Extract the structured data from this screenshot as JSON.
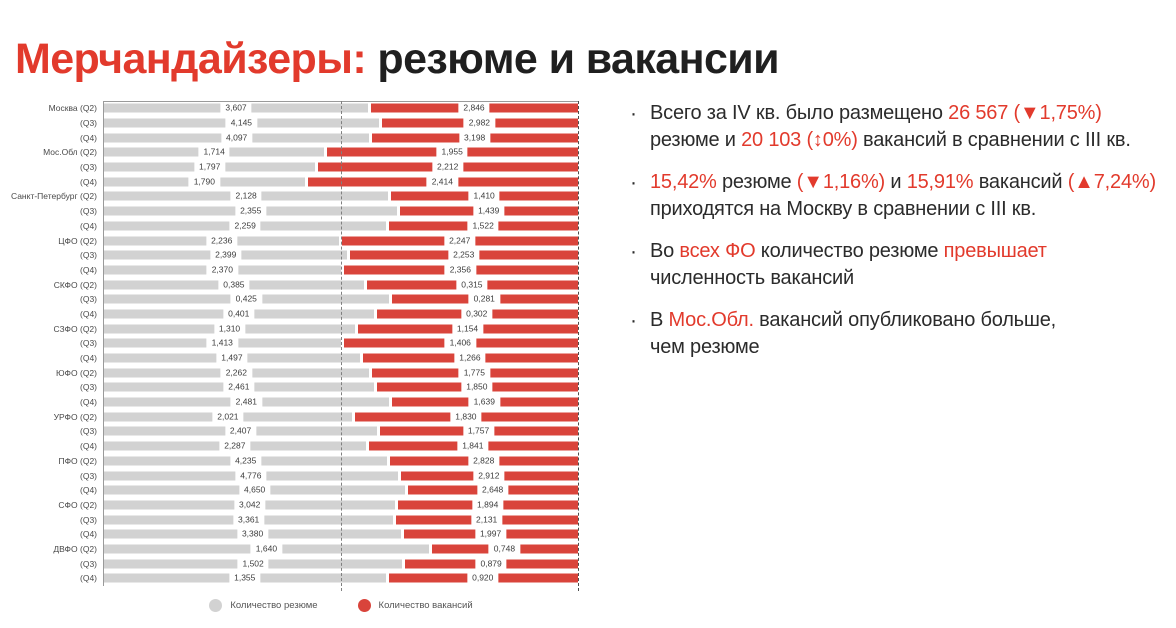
{
  "title": {
    "segments": [
      {
        "t": "Мерчандайзеры:",
        "c": "red"
      },
      {
        "t": " резюме и вакансии",
        "c": "dark"
      }
    ]
  },
  "colors": {
    "red_text": "#e23a2c",
    "bar_red": "#d9443b",
    "bar_gray": "#d2d2d2",
    "dark_text": "#1f1f1f"
  },
  "chart_data": {
    "type": "bar",
    "variant": "horizontal-100pct-stacked",
    "unit": "thousands (labels use comma as decimal separator)",
    "gridlines": {
      "mid_dashed_at": "50%",
      "right_dashed_at": "100%"
    },
    "legend": [
      {
        "label": "Количество резюме",
        "color": "#d2d2d2"
      },
      {
        "label": "Количество вакансий",
        "color": "#d9443b"
      }
    ],
    "rows": [
      {
        "axis_label": "Москва (Q2)",
        "group": "Москва",
        "quarter": "Q2",
        "resumes": 3607,
        "vacancies": 2846,
        "resumes_label": "3,607",
        "vacancies_label": "2,846"
      },
      {
        "axis_label": "(Q3)",
        "group": "Москва",
        "quarter": "Q3",
        "resumes": 4145,
        "vacancies": 2982,
        "resumes_label": "4,145",
        "vacancies_label": "2,982"
      },
      {
        "axis_label": "(Q4)",
        "group": "Москва",
        "quarter": "Q4",
        "resumes": 4097,
        "vacancies": 3198,
        "resumes_label": "4,097",
        "vacancies_label": "3,198"
      },
      {
        "axis_label": "Мос.Обл (Q2)",
        "group": "Мос.Обл",
        "quarter": "Q2",
        "resumes": 1714,
        "vacancies": 1955,
        "resumes_label": "1,714",
        "vacancies_label": "1,955"
      },
      {
        "axis_label": "(Q3)",
        "group": "Мос.Обл",
        "quarter": "Q3",
        "resumes": 1797,
        "vacancies": 2212,
        "resumes_label": "1,797",
        "vacancies_label": "2,212"
      },
      {
        "axis_label": "(Q4)",
        "group": "Мос.Обл",
        "quarter": "Q4",
        "resumes": 1790,
        "vacancies": 2414,
        "resumes_label": "1,790",
        "vacancies_label": "2,414"
      },
      {
        "axis_label": "Санкт-Петербург (Q2)",
        "group": "Санкт-Петербург",
        "quarter": "Q2",
        "resumes": 2128,
        "vacancies": 1410,
        "resumes_label": "2,128",
        "vacancies_label": "1,410"
      },
      {
        "axis_label": "(Q3)",
        "group": "Санкт-Петербург",
        "quarter": "Q3",
        "resumes": 2355,
        "vacancies": 1439,
        "resumes_label": "2,355",
        "vacancies_label": "1,439"
      },
      {
        "axis_label": "(Q4)",
        "group": "Санкт-Петербург",
        "quarter": "Q4",
        "resumes": 2259,
        "vacancies": 1522,
        "resumes_label": "2,259",
        "vacancies_label": "1,522"
      },
      {
        "axis_label": "ЦФО (Q2)",
        "group": "ЦФО",
        "quarter": "Q2",
        "resumes": 2236,
        "vacancies": 2247,
        "resumes_label": "2,236",
        "vacancies_label": "2,247"
      },
      {
        "axis_label": "(Q3)",
        "group": "ЦФО",
        "quarter": "Q3",
        "resumes": 2399,
        "vacancies": 2253,
        "resumes_label": "2,399",
        "vacancies_label": "2,253"
      },
      {
        "axis_label": "(Q4)",
        "group": "ЦФО",
        "quarter": "Q4",
        "resumes": 2370,
        "vacancies": 2356,
        "resumes_label": "2,370",
        "vacancies_label": "2,356"
      },
      {
        "axis_label": "СКФО (Q2)",
        "group": "СКФО",
        "quarter": "Q2",
        "resumes": 385,
        "vacancies": 315,
        "resumes_label": "0,385",
        "vacancies_label": "0,315"
      },
      {
        "axis_label": "(Q3)",
        "group": "СКФО",
        "quarter": "Q3",
        "resumes": 425,
        "vacancies": 281,
        "resumes_label": "0,425",
        "vacancies_label": "0,281"
      },
      {
        "axis_label": "(Q4)",
        "group": "СКФО",
        "quarter": "Q4",
        "resumes": 401,
        "vacancies": 302,
        "resumes_label": "0,401",
        "vacancies_label": "0,302"
      },
      {
        "axis_label": "СЗФО (Q2)",
        "group": "СЗФО",
        "quarter": "Q2",
        "resumes": 1310,
        "vacancies": 1154,
        "resumes_label": "1,310",
        "vacancies_label": "1,154"
      },
      {
        "axis_label": "(Q3)",
        "group": "СЗФО",
        "quarter": "Q3",
        "resumes": 1413,
        "vacancies": 1406,
        "resumes_label": "1,413",
        "vacancies_label": "1,406"
      },
      {
        "axis_label": "(Q4)",
        "group": "СЗФО",
        "quarter": "Q4",
        "resumes": 1497,
        "vacancies": 1266,
        "resumes_label": "1,497",
        "vacancies_label": "1,266"
      },
      {
        "axis_label": "ЮФО (Q2)",
        "group": "ЮФО",
        "quarter": "Q2",
        "resumes": 2262,
        "vacancies": 1775,
        "resumes_label": "2,262",
        "vacancies_label": "1,775"
      },
      {
        "axis_label": "(Q3)",
        "group": "ЮФО",
        "quarter": "Q3",
        "resumes": 2461,
        "vacancies": 1850,
        "resumes_label": "2,461",
        "vacancies_label": "1,850"
      },
      {
        "axis_label": "(Q4)",
        "group": "ЮФО",
        "quarter": "Q4",
        "resumes": 2481,
        "vacancies": 1639,
        "resumes_label": "2,481",
        "vacancies_label": "1,639"
      },
      {
        "axis_label": "УРФО (Q2)",
        "group": "УРФО",
        "quarter": "Q2",
        "resumes": 2021,
        "vacancies": 1830,
        "resumes_label": "2,021",
        "vacancies_label": "1,830"
      },
      {
        "axis_label": "(Q3)",
        "group": "УРФО",
        "quarter": "Q3",
        "resumes": 2407,
        "vacancies": 1757,
        "resumes_label": "2,407",
        "vacancies_label": "1,757"
      },
      {
        "axis_label": "(Q4)",
        "group": "УРФО",
        "quarter": "Q4",
        "resumes": 2287,
        "vacancies": 1841,
        "resumes_label": "2,287",
        "vacancies_label": "1,841"
      },
      {
        "axis_label": "ПФО (Q2)",
        "group": "ПФО",
        "quarter": "Q2",
        "resumes": 4235,
        "vacancies": 2828,
        "resumes_label": "4,235",
        "vacancies_label": "2,828"
      },
      {
        "axis_label": "(Q3)",
        "group": "ПФО",
        "quarter": "Q3",
        "resumes": 4776,
        "vacancies": 2912,
        "resumes_label": "4,776",
        "vacancies_label": "2,912"
      },
      {
        "axis_label": "(Q4)",
        "group": "ПФО",
        "quarter": "Q4",
        "resumes": 4650,
        "vacancies": 2648,
        "resumes_label": "4,650",
        "vacancies_label": "2,648"
      },
      {
        "axis_label": "СФО (Q2)",
        "group": "СФО",
        "quarter": "Q2",
        "resumes": 3042,
        "vacancies": 1894,
        "resumes_label": "3,042",
        "vacancies_label": "1,894"
      },
      {
        "axis_label": "(Q3)",
        "group": "СФО",
        "quarter": "Q3",
        "resumes": 3361,
        "vacancies": 2131,
        "resumes_label": "3,361",
        "vacancies_label": "2,131"
      },
      {
        "axis_label": "(Q4)",
        "group": "СФО",
        "quarter": "Q4",
        "resumes": 3380,
        "vacancies": 1997,
        "resumes_label": "3,380",
        "vacancies_label": "1,997"
      },
      {
        "axis_label": "ДВФО (Q2)",
        "group": "ДВФО",
        "quarter": "Q2",
        "resumes": 1640,
        "vacancies": 748,
        "resumes_label": "1,640",
        "vacancies_label": "0,748"
      },
      {
        "axis_label": "(Q3)",
        "group": "ДВФО",
        "quarter": "Q3",
        "resumes": 1502,
        "vacancies": 879,
        "resumes_label": "1,502",
        "vacancies_label": "0,879"
      },
      {
        "axis_label": "(Q4)",
        "group": "ДВФО",
        "quarter": "Q4",
        "resumes": 1355,
        "vacancies": 920,
        "resumes_label": "1,355",
        "vacancies_label": "0,920"
      }
    ]
  },
  "notes": {
    "bullets": [
      {
        "segments": [
          {
            "t": "Всего за IV кв. было размещено "
          },
          {
            "t": "26 567 (▼1,75%)",
            "c": "red"
          },
          {
            "br": true
          },
          {
            "t": "резюме и "
          },
          {
            "t": "20 103 (↕0%)",
            "c": "red"
          },
          {
            "t": " вакансий в сравнении с III кв."
          }
        ]
      },
      {
        "segments": [
          {
            "t": "15,42%",
            "c": "red"
          },
          {
            "t": " резюме "
          },
          {
            "t": "(▼1,16%)",
            "c": "red"
          },
          {
            "t": " и "
          },
          {
            "t": "15,91%",
            "c": "red"
          },
          {
            "t": " вакансий "
          },
          {
            "t": "(▲7,24%)",
            "c": "red"
          },
          {
            "br": true
          },
          {
            "t": "приходятся на Москву в сравнении с III кв."
          }
        ]
      },
      {
        "segments": [
          {
            "t": "Во "
          },
          {
            "t": "всех ФО",
            "c": "red"
          },
          {
            "t": " количество резюме "
          },
          {
            "t": "превышает",
            "c": "red"
          },
          {
            "br": true
          },
          {
            "t": "численность вакансий"
          }
        ]
      },
      {
        "segments": [
          {
            "t": "В "
          },
          {
            "t": "Мос.Обл.",
            "c": "red"
          },
          {
            "t": " вакансий опубликовано больше,"
          },
          {
            "br": true
          },
          {
            "t": "чем резюме"
          }
        ]
      }
    ],
    "bullet_marker": "·"
  }
}
